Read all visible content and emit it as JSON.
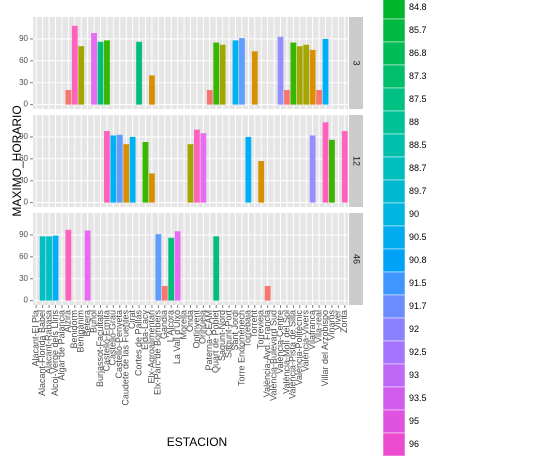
{
  "chart_data": {
    "type": "bar",
    "y_label": "MAXIMO_HORARIO",
    "x_label": "ESTACION",
    "categories": [
      "Alacant-El Pla",
      "Alacant-Florida Babel",
      "Alacant-Rabasa",
      "Alcoi-Verge dels Lliris",
      "Algar de Palancia",
      "Alzira",
      "Benidorm",
      "Benigànim",
      "Bétera",
      "Buñol",
      "Burjassot-Facultats",
      "Castelló-Ermita",
      "Castelló-Grau",
      "Castelló-Penyeta",
      "Caudete de las Fuentes",
      "Cirat",
      "Cortes de Pallás",
      "Elda-Lacy",
      "Elx-Agroalimentari",
      "Elx-Parc de Bombers",
      "Gandia",
      "L'Alcora",
      "La Vall d'Uixó",
      "Morella",
      "Onda",
      "Ontinyent",
      "Orihuela",
      "Paterna-CEAM",
      "Quart de Poblet",
      "Sagunt-Nord",
      "Sagunt-Port",
      "Sant Jordi",
      "Torre Endoménech",
      "Torrebaja",
      "Torrent",
      "Torrevieja",
      "València-Avd. Francia",
      "València-Bulevard Sud",
      "València-Centre",
      "València-Molí del Sol",
      "València-Pista de Silla",
      "València-Politècnic",
      "València-Vivers",
      "Vilafranca",
      "Vila-real",
      "Villar del Arzobispo",
      "Vinaròs",
      "Viver",
      "Zorita"
    ],
    "ylim": [
      -6,
      120
    ],
    "yticks": [
      0,
      30,
      60,
      90
    ],
    "grid": true,
    "facets": [
      {
        "name": "3",
        "values": [
          null,
          null,
          null,
          null,
          null,
          20,
          108,
          80,
          null,
          98,
          86,
          88,
          null,
          null,
          null,
          null,
          86,
          null,
          40,
          null,
          null,
          null,
          null,
          null,
          null,
          null,
          null,
          20,
          85,
          82,
          null,
          88,
          91,
          null,
          73,
          null,
          null,
          null,
          93,
          20,
          85,
          80,
          82,
          75,
          20,
          90,
          null,
          null,
          null
        ],
        "colors": [
          null,
          null,
          null,
          null,
          null,
          "#f8766d",
          "#ff62bc",
          "#a3a500",
          null,
          "#e76bf3",
          "#00bf7d",
          "#39b600",
          null,
          null,
          null,
          null,
          "#00bf7d",
          null,
          "#d89000",
          null,
          null,
          null,
          null,
          null,
          null,
          null,
          null,
          "#f8766d",
          "#39b600",
          "#a3a500",
          null,
          "#00b0f6",
          "#619cff",
          null,
          "#d89000",
          null,
          null,
          null,
          "#9590ff",
          "#f8766d",
          "#39b600",
          "#a3a500",
          "#a3a500",
          "#d89000",
          "#f8766d",
          "#00b0f6",
          null,
          null,
          null
        ]
      },
      {
        "name": "12",
        "values": [
          null,
          null,
          null,
          null,
          null,
          null,
          null,
          null,
          null,
          null,
          null,
          98,
          92,
          93,
          80,
          90,
          null,
          83,
          40,
          null,
          null,
          null,
          null,
          null,
          80,
          100,
          95,
          null,
          null,
          null,
          null,
          null,
          null,
          90,
          null,
          57,
          null,
          null,
          null,
          null,
          null,
          null,
          null,
          92,
          null,
          110,
          86,
          null,
          98
        ],
        "colors": [
          null,
          null,
          null,
          null,
          null,
          null,
          null,
          null,
          null,
          null,
          null,
          "#ff62bc",
          "#00b0f6",
          "#619cff",
          "#d89000",
          "#00b0f6",
          null,
          "#39b600",
          "#d89000",
          null,
          null,
          null,
          null,
          null,
          "#a3a500",
          "#ff62bc",
          "#e76bf3",
          null,
          null,
          null,
          null,
          null,
          null,
          "#00b0f6",
          null,
          "#d89000",
          null,
          null,
          null,
          null,
          null,
          null,
          null,
          "#9590ff",
          null,
          "#ff62bc",
          "#39b600",
          null,
          "#ff62bc"
        ]
      },
      {
        "name": "46",
        "values": [
          null,
          88,
          88,
          89,
          null,
          97,
          null,
          null,
          96,
          null,
          null,
          null,
          null,
          null,
          null,
          null,
          null,
          null,
          null,
          91,
          20,
          86,
          95,
          null,
          null,
          null,
          null,
          null,
          88,
          null,
          null,
          null,
          null,
          null,
          null,
          null,
          20,
          null,
          null,
          null,
          null,
          null,
          null,
          null,
          null,
          null,
          null,
          null,
          null
        ],
        "colors": [
          null,
          "#00bfc4",
          "#00bfc4",
          "#00b0f6",
          null,
          "#ff62bc",
          null,
          null,
          "#e76bf3",
          null,
          null,
          null,
          null,
          null,
          null,
          null,
          null,
          null,
          null,
          "#619cff",
          "#f8766d",
          "#00bf7d",
          "#e76bf3",
          null,
          null,
          null,
          null,
          null,
          "#00bf7d",
          null,
          null,
          null,
          null,
          null,
          null,
          null,
          "#f8766d",
          null,
          null,
          null,
          null,
          null,
          null,
          null,
          null,
          null,
          null,
          null,
          null
        ]
      }
    ],
    "legend": {
      "labels": [
        "84.8",
        "85.7",
        "86.8",
        "87.3",
        "87.5",
        "88",
        "88.5",
        "88.7",
        "89.7",
        "90",
        "90.5",
        "90.8",
        "91.5",
        "91.7",
        "92",
        "92.5",
        "93",
        "93.5",
        "95",
        "96"
      ],
      "colors": [
        "#00b52a",
        "#00b940",
        "#00bc56",
        "#00be6c",
        "#00c082",
        "#00c097",
        "#00bfab",
        "#00bdbe",
        "#00b9d0",
        "#00b3e0",
        "#00abee",
        "#00a2f8",
        "#3d97ff",
        "#6b8cff",
        "#8b80ff",
        "#a674ff",
        "#bd68f7",
        "#d05ded",
        "#e052e0",
        "#ec4bcf"
      ]
    }
  }
}
